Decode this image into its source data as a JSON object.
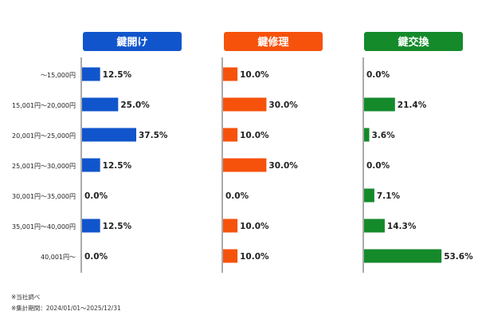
{
  "chart_data": {
    "type": "bar",
    "orientation": "horizontal",
    "categories": [
      "～15,000円",
      "15,001円～20,000円",
      "20,001円～25,000円",
      "25,001円～30,000円",
      "30,001円～35,000円",
      "35,001円～40,000円",
      "40,001円～"
    ],
    "series": [
      {
        "name": "鍵開け",
        "color": "#1155cc",
        "values": [
          12.5,
          25.0,
          37.5,
          12.5,
          0.0,
          12.5,
          0.0
        ]
      },
      {
        "name": "鍵修理",
        "color": "#f6520b",
        "values": [
          10.0,
          30.0,
          10.0,
          30.0,
          0.0,
          10.0,
          10.0
        ]
      },
      {
        "name": "鍵交換",
        "color": "#148a2b",
        "values": [
          0.0,
          21.4,
          3.6,
          0.0,
          7.1,
          14.3,
          53.6
        ]
      }
    ],
    "value_suffix": "%",
    "grid": false
  },
  "notes": [
    "※当社調べ",
    "※集計期間：2024/01/01～2025/12/31"
  ]
}
